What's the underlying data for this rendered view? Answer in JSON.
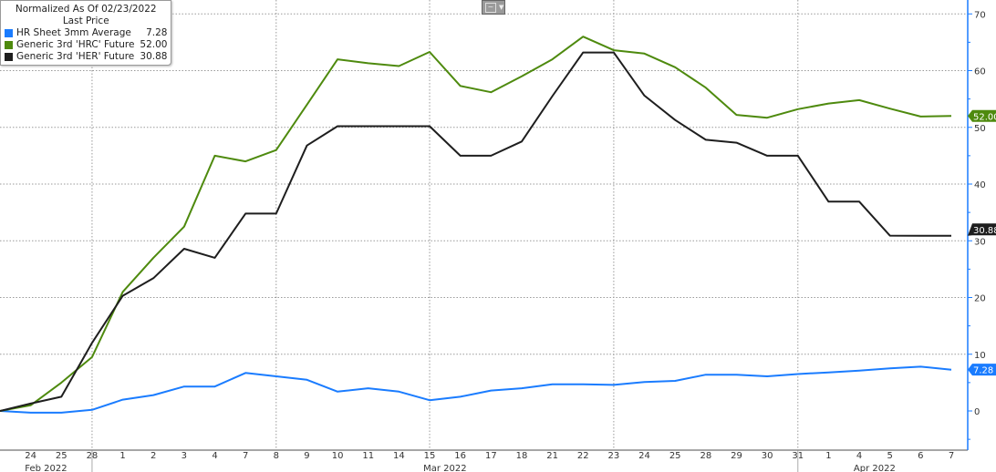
{
  "legend": {
    "title": "Normalized As Of 02/23/2022",
    "subtitle": "Last Price",
    "items": [
      {
        "label": "HR Sheet 3mm Average",
        "value": "7.28",
        "color": "#1a7cff"
      },
      {
        "label": "Generic 3rd 'HRC' Future",
        "value": "52.00",
        "color": "#4e8a0e"
      },
      {
        "label": "Generic 3rd 'HER' Future",
        "value": "30.88",
        "color": "#1e1e1e"
      }
    ]
  },
  "toolbar": {
    "chart_type_icon": "line-chart-icon"
  },
  "chart_data": {
    "type": "line",
    "x": [
      "23",
      "24",
      "25",
      "28",
      "1",
      "2",
      "3",
      "4",
      "7",
      "8",
      "9",
      "10",
      "11",
      "14",
      "15",
      "16",
      "17",
      "18",
      "21",
      "22",
      "23",
      "24",
      "25",
      "28",
      "29",
      "30",
      "31",
      "1",
      "4",
      "5",
      "6",
      "7"
    ],
    "x_tick_labels": [
      "24",
      "25",
      "28",
      "1",
      "2",
      "3",
      "4",
      "7",
      "8",
      "9",
      "10",
      "11",
      "14",
      "15",
      "16",
      "17",
      "18",
      "21",
      "22",
      "23",
      "24",
      "25",
      "28",
      "29",
      "30",
      "31",
      "1",
      "4",
      "5",
      "6",
      "7"
    ],
    "month_labels": [
      {
        "label": "Feb 2022",
        "at": "24-25"
      },
      {
        "label": "Mar 2022",
        "at": "15-16"
      },
      {
        "label": "Apr 2022",
        "at": "4-5"
      }
    ],
    "ylim": [
      -5,
      72
    ],
    "y_ticks": [
      0,
      10,
      20,
      30,
      40,
      50,
      60,
      70
    ],
    "y_axis_side": "right",
    "grid": true,
    "legend_position": "top-left",
    "series": [
      {
        "name": "HR Sheet 3mm Average",
        "color": "#1a7cff",
        "last_label": "7.28",
        "values": [
          0,
          -0.3,
          -0.3,
          0.2,
          2,
          2.8,
          4.3,
          4.3,
          6.7,
          6.1,
          5.5,
          3.4,
          4,
          3.4,
          1.9,
          2.5,
          3.6,
          4,
          4.7,
          4.7,
          4.6,
          5.1,
          5.3,
          6.4,
          6.4,
          6.1,
          6.5,
          6.8,
          7.1,
          7.5,
          7.8,
          7.28
        ]
      },
      {
        "name": "Generic 3rd 'HRC' Future",
        "color": "#4e8a0e",
        "last_label": "52.00",
        "values": [
          0,
          1,
          5,
          9.5,
          21,
          27,
          32.5,
          45,
          44,
          46,
          54,
          62,
          61.3,
          60.8,
          63.3,
          57.3,
          56.2,
          59,
          62,
          66,
          63.6,
          63,
          60.6,
          57,
          52.2,
          51.7,
          53.2,
          54.2,
          54.8,
          53.3,
          51.9,
          52.0
        ]
      },
      {
        "name": "Generic 3rd 'HER' Future",
        "color": "#1e1e1e",
        "last_label": "30.88",
        "values": [
          0,
          1.3,
          2.5,
          12,
          20.3,
          23.4,
          28.6,
          27,
          34.8,
          34.8,
          46.8,
          50.2,
          50.2,
          50.2,
          50.2,
          45,
          45,
          47.5,
          55.5,
          63.2,
          63.2,
          55.6,
          51.3,
          47.8,
          47.3,
          45,
          45,
          36.9,
          36.9,
          30.9,
          30.88,
          30.88
        ]
      }
    ]
  }
}
